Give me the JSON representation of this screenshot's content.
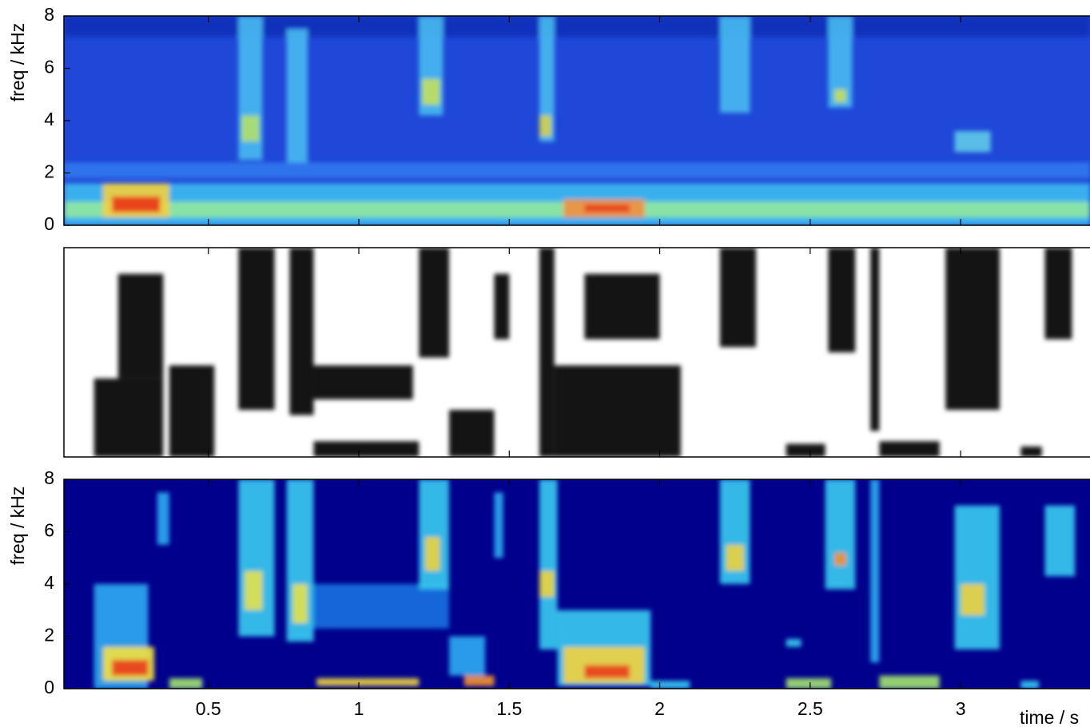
{
  "chart_data": [
    {
      "type": "spectrogram",
      "ylabel": "freq / kHz",
      "xlim": [
        0.02,
        3.43
      ],
      "ylim": [
        0,
        8
      ],
      "xticks": [
        0.5,
        1,
        1.5,
        2,
        2.5,
        3
      ],
      "yticks": [
        0,
        2,
        4,
        6,
        8
      ],
      "background": "#1f48d8",
      "regions": [
        {
          "x": [
            0.02,
            3.43
          ],
          "y": [
            7.2,
            8
          ],
          "color": "#1030b8"
        },
        {
          "x": [
            0.02,
            3.43
          ],
          "y": [
            1.8,
            2.4
          ],
          "color": "#2f78ee"
        },
        {
          "x": [
            0.02,
            3.43
          ],
          "y": [
            0,
            1.6
          ],
          "color": "#3cb8f0"
        },
        {
          "x": [
            0.02,
            3.43
          ],
          "y": [
            0.3,
            0.9
          ],
          "color": "#90e8a0"
        },
        {
          "x": [
            0.15,
            0.37
          ],
          "y": [
            0.3,
            1.6
          ],
          "color": "#f0d040"
        },
        {
          "x": [
            0.18,
            0.34
          ],
          "y": [
            0.5,
            1.1
          ],
          "color": "#e83818"
        },
        {
          "x": [
            1.68,
            1.95
          ],
          "y": [
            0.3,
            1.0
          ],
          "color": "#f09040"
        },
        {
          "x": [
            1.75,
            1.9
          ],
          "y": [
            0.5,
            0.8
          ],
          "color": "#e84020"
        },
        {
          "x": [
            0.6,
            0.68
          ],
          "y": [
            2.5,
            8
          ],
          "color": "#48b8f0"
        },
        {
          "x": [
            0.61,
            0.67
          ],
          "y": [
            3.2,
            4.2
          ],
          "color": "#b0e070"
        },
        {
          "x": [
            0.76,
            0.83
          ],
          "y": [
            2.4,
            7.5
          ],
          "color": "#48b8f0"
        },
        {
          "x": [
            1.2,
            1.28
          ],
          "y": [
            4.2,
            8
          ],
          "color": "#48b8f0"
        },
        {
          "x": [
            1.21,
            1.27
          ],
          "y": [
            4.6,
            5.6
          ],
          "color": "#c0e060"
        },
        {
          "x": [
            1.6,
            1.65
          ],
          "y": [
            3.2,
            8
          ],
          "color": "#48b8f0"
        },
        {
          "x": [
            1.6,
            1.64
          ],
          "y": [
            3.4,
            4.2
          ],
          "color": "#d0d050"
        },
        {
          "x": [
            2.2,
            2.3
          ],
          "y": [
            4.3,
            8
          ],
          "color": "#48b8f0"
        },
        {
          "x": [
            2.56,
            2.64
          ],
          "y": [
            4.5,
            8
          ],
          "color": "#48b8f0"
        },
        {
          "x": [
            2.58,
            2.62
          ],
          "y": [
            4.7,
            5.2
          ],
          "color": "#c0e060"
        },
        {
          "x": [
            2.98,
            3.1
          ],
          "y": [
            2.8,
            3.6
          ],
          "color": "#60c8e8"
        }
      ]
    },
    {
      "type": "spectrogram",
      "xlim": [
        0.02,
        3.43
      ],
      "ylim": [
        0,
        8
      ],
      "xticks": [
        0.5,
        1,
        1.5,
        2,
        2.5,
        3
      ],
      "background": "#ffffff",
      "regions": [
        {
          "x": [
            0.12,
            0.35
          ],
          "y": [
            0,
            3
          ],
          "color": "#000000"
        },
        {
          "x": [
            0.2,
            0.35
          ],
          "y": [
            3,
            7
          ],
          "color": "#000000"
        },
        {
          "x": [
            0.37,
            0.52
          ],
          "y": [
            0,
            3.5
          ],
          "color": "#000000"
        },
        {
          "x": [
            0.6,
            0.72
          ],
          "y": [
            1.8,
            8
          ],
          "color": "#000000"
        },
        {
          "x": [
            0.77,
            0.85
          ],
          "y": [
            1.6,
            8
          ],
          "color": "#000000"
        },
        {
          "x": [
            0.85,
            1.18
          ],
          "y": [
            2.2,
            3.5
          ],
          "color": "#000000"
        },
        {
          "x": [
            0.85,
            1.2
          ],
          "y": [
            0,
            0.6
          ],
          "color": "#000000"
        },
        {
          "x": [
            1.2,
            1.3
          ],
          "y": [
            3.8,
            8
          ],
          "color": "#000000"
        },
        {
          "x": [
            1.3,
            1.45
          ],
          "y": [
            0,
            1.8
          ],
          "color": "#000000"
        },
        {
          "x": [
            1.45,
            1.5
          ],
          "y": [
            4.5,
            7
          ],
          "color": "#000000"
        },
        {
          "x": [
            1.6,
            1.65
          ],
          "y": [
            0,
            8
          ],
          "color": "#000000"
        },
        {
          "x": [
            1.65,
            2.07
          ],
          "y": [
            0,
            3.5
          ],
          "color": "#000000"
        },
        {
          "x": [
            1.75,
            2.0
          ],
          "y": [
            4.5,
            7
          ],
          "color": "#000000"
        },
        {
          "x": [
            2.2,
            2.32
          ],
          "y": [
            4.2,
            8
          ],
          "color": "#000000"
        },
        {
          "x": [
            2.42,
            2.55
          ],
          "y": [
            0,
            0.5
          ],
          "color": "#000000"
        },
        {
          "x": [
            2.56,
            2.65
          ],
          "y": [
            4,
            8
          ],
          "color": "#000000"
        },
        {
          "x": [
            2.7,
            2.73
          ],
          "y": [
            1,
            8
          ],
          "color": "#000000"
        },
        {
          "x": [
            2.73,
            2.93
          ],
          "y": [
            0,
            0.6
          ],
          "color": "#000000"
        },
        {
          "x": [
            2.95,
            3.13
          ],
          "y": [
            1.8,
            8
          ],
          "color": "#000000"
        },
        {
          "x": [
            3.2,
            3.27
          ],
          "y": [
            0,
            0.4
          ],
          "color": "#000000"
        },
        {
          "x": [
            3.28,
            3.37
          ],
          "y": [
            4.5,
            8
          ],
          "color": "#000000"
        }
      ]
    },
    {
      "type": "spectrogram",
      "ylabel": "freq / kHz",
      "xlabel": "time / s",
      "xlim": [
        0.02,
        3.43
      ],
      "ylim": [
        0,
        8
      ],
      "xticks": [
        0.5,
        1,
        1.5,
        2,
        2.5,
        3
      ],
      "yticks": [
        0,
        2,
        4,
        6,
        8
      ],
      "background": "#00008c",
      "regions": [
        {
          "x": [
            0.12,
            0.3
          ],
          "y": [
            0,
            4
          ],
          "color": "#2aa8f0"
        },
        {
          "x": [
            0.15,
            0.32
          ],
          "y": [
            0.3,
            1.6
          ],
          "color": "#f0e040"
        },
        {
          "x": [
            0.18,
            0.3
          ],
          "y": [
            0.5,
            1.1
          ],
          "color": "#e84020"
        },
        {
          "x": [
            0.33,
            0.37
          ],
          "y": [
            5.5,
            7.5
          ],
          "color": "#2aa8f0"
        },
        {
          "x": [
            0.37,
            0.48
          ],
          "y": [
            0,
            0.4
          ],
          "color": "#a0e070"
        },
        {
          "x": [
            0.6,
            0.72
          ],
          "y": [
            2,
            8
          ],
          "color": "#38c8f0"
        },
        {
          "x": [
            0.62,
            0.68
          ],
          "y": [
            3,
            4.5
          ],
          "color": "#e0e050"
        },
        {
          "x": [
            0.76,
            0.85
          ],
          "y": [
            1.8,
            8
          ],
          "color": "#38c8f0"
        },
        {
          "x": [
            0.78,
            0.83
          ],
          "y": [
            2.5,
            4
          ],
          "color": "#e0e050"
        },
        {
          "x": [
            0.85,
            1.3
          ],
          "y": [
            2.3,
            4
          ],
          "color": "#1a70e0"
        },
        {
          "x": [
            0.86,
            1.2
          ],
          "y": [
            0.1,
            0.4
          ],
          "color": "#e8d040"
        },
        {
          "x": [
            1.2,
            1.3
          ],
          "y": [
            3.8,
            8
          ],
          "color": "#38c8f0"
        },
        {
          "x": [
            1.22,
            1.27
          ],
          "y": [
            4.5,
            5.8
          ],
          "color": "#e8d040"
        },
        {
          "x": [
            1.3,
            1.42
          ],
          "y": [
            0.5,
            2
          ],
          "color": "#2aa8f0"
        },
        {
          "x": [
            1.35,
            1.45
          ],
          "y": [
            0.1,
            0.5
          ],
          "color": "#f09030"
        },
        {
          "x": [
            1.45,
            1.48
          ],
          "y": [
            5,
            7.5
          ],
          "color": "#2aa8f0"
        },
        {
          "x": [
            1.6,
            1.66
          ],
          "y": [
            1.5,
            8
          ],
          "color": "#38c8f0"
        },
        {
          "x": [
            1.6,
            1.65
          ],
          "y": [
            3.5,
            4.5
          ],
          "color": "#e8d040"
        },
        {
          "x": [
            1.66,
            1.97
          ],
          "y": [
            0.1,
            3
          ],
          "color": "#38c8f0"
        },
        {
          "x": [
            1.68,
            1.95
          ],
          "y": [
            0.2,
            1.6
          ],
          "color": "#f0d040"
        },
        {
          "x": [
            1.75,
            1.9
          ],
          "y": [
            0.4,
            0.9
          ],
          "color": "#e84020"
        },
        {
          "x": [
            1.97,
            2.1
          ],
          "y": [
            0,
            0.3
          ],
          "color": "#38c8f0"
        },
        {
          "x": [
            2.2,
            2.3
          ],
          "y": [
            4,
            8
          ],
          "color": "#38c8f0"
        },
        {
          "x": [
            2.22,
            2.28
          ],
          "y": [
            4.5,
            5.5
          ],
          "color": "#e8d040"
        },
        {
          "x": [
            2.42,
            2.47
          ],
          "y": [
            1.6,
            1.9
          ],
          "color": "#38c8f0"
        },
        {
          "x": [
            2.42,
            2.57
          ],
          "y": [
            0,
            0.4
          ],
          "color": "#a0e070"
        },
        {
          "x": [
            2.55,
            2.65
          ],
          "y": [
            3.8,
            8
          ],
          "color": "#38c8f0"
        },
        {
          "x": [
            2.58,
            2.62
          ],
          "y": [
            4.7,
            5.2
          ],
          "color": "#f09030"
        },
        {
          "x": [
            2.7,
            2.73
          ],
          "y": [
            1,
            8
          ],
          "color": "#2aa8f0"
        },
        {
          "x": [
            2.73,
            2.93
          ],
          "y": [
            0,
            0.5
          ],
          "color": "#a0e070"
        },
        {
          "x": [
            2.98,
            3.13
          ],
          "y": [
            1.5,
            7
          ],
          "color": "#38c8f0"
        },
        {
          "x": [
            3.0,
            3.08
          ],
          "y": [
            2.8,
            4
          ],
          "color": "#e8d040"
        },
        {
          "x": [
            3.2,
            3.26
          ],
          "y": [
            0,
            0.3
          ],
          "color": "#38c8f0"
        },
        {
          "x": [
            3.28,
            3.38
          ],
          "y": [
            4.3,
            7
          ],
          "color": "#38c8f0"
        }
      ]
    }
  ]
}
